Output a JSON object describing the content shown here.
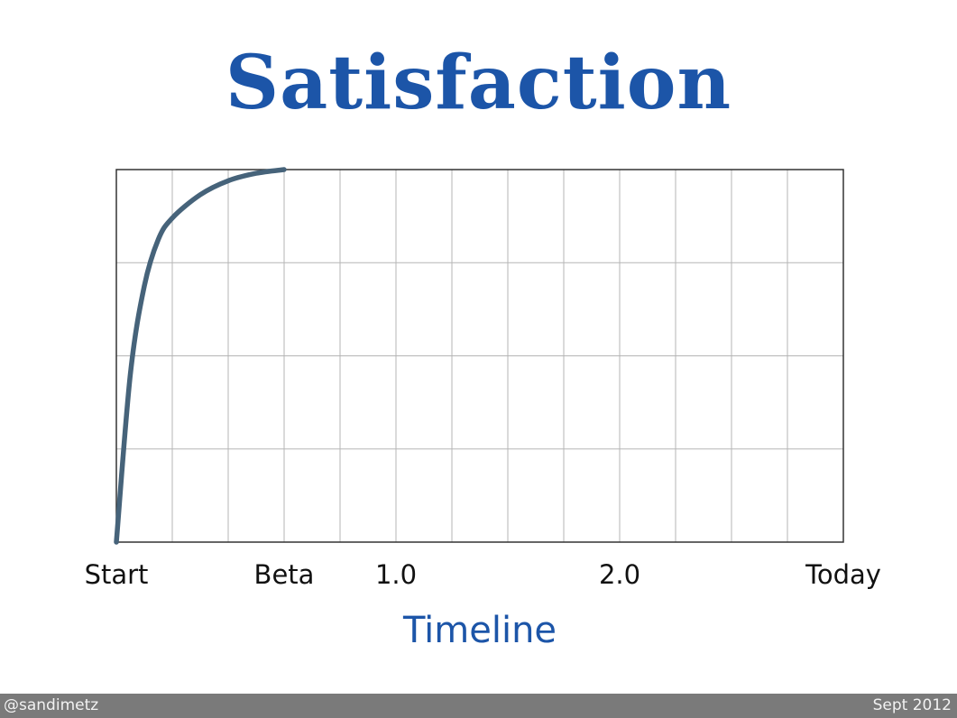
{
  "slide": {
    "title": "Satisfaction",
    "footer_left": "@sandimetz",
    "footer_right": "Sept 2012"
  },
  "colors": {
    "title": "#1c55a8",
    "curve": "#46637a",
    "grid": "#b5b5b5",
    "frame": "#333333",
    "footer_bg": "#7a7a7a"
  },
  "chart_data": {
    "type": "line",
    "title": "Satisfaction",
    "xlabel": "Timeline",
    "ylabel": "",
    "xlim": [
      0,
      13
    ],
    "ylim": [
      0,
      4
    ],
    "grid": true,
    "x_tick_labels": [
      {
        "x": 0,
        "label": "Start"
      },
      {
        "x": 3,
        "label": "Beta"
      },
      {
        "x": 5,
        "label": "1.0"
      },
      {
        "x": 9,
        "label": "2.0"
      },
      {
        "x": 13,
        "label": "Today"
      }
    ],
    "series": [
      {
        "name": "",
        "x": [
          0,
          0.25,
          0.5,
          0.75,
          1,
          1.5,
          2,
          2.5,
          3
        ],
        "y": [
          0,
          1.8,
          2.75,
          3.25,
          3.48,
          3.73,
          3.88,
          3.96,
          4.0
        ]
      }
    ]
  }
}
